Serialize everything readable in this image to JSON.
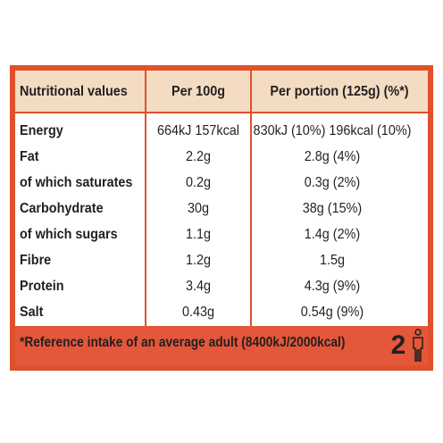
{
  "header": {
    "columns": [
      "Nutritional values",
      "Per 100g",
      "Per portion (125g) (%*)"
    ]
  },
  "rows": [
    [
      "Energy",
      "664kJ 157kcal",
      "830kJ (10%) 196kcal (10%)"
    ],
    [
      "Fat",
      "2.2g",
      "2.8g (4%)"
    ],
    [
      "of which saturates",
      "0.2g",
      "0.3g (2%)"
    ],
    [
      "Carbohydrate",
      "30g",
      "38g (15%)"
    ],
    [
      "of which sugars",
      "1.1g",
      "1.4g (2%)"
    ],
    [
      "Fibre",
      "1.2g",
      "1.5g"
    ],
    [
      "Protein",
      "3.4g",
      "4.3g (9%)"
    ],
    [
      "Salt",
      "0.43g",
      "0.54g (9%)"
    ]
  ],
  "footer": {
    "note": "*Reference intake of an average adult (8400kJ/2000kcal)",
    "badge": "2"
  }
}
